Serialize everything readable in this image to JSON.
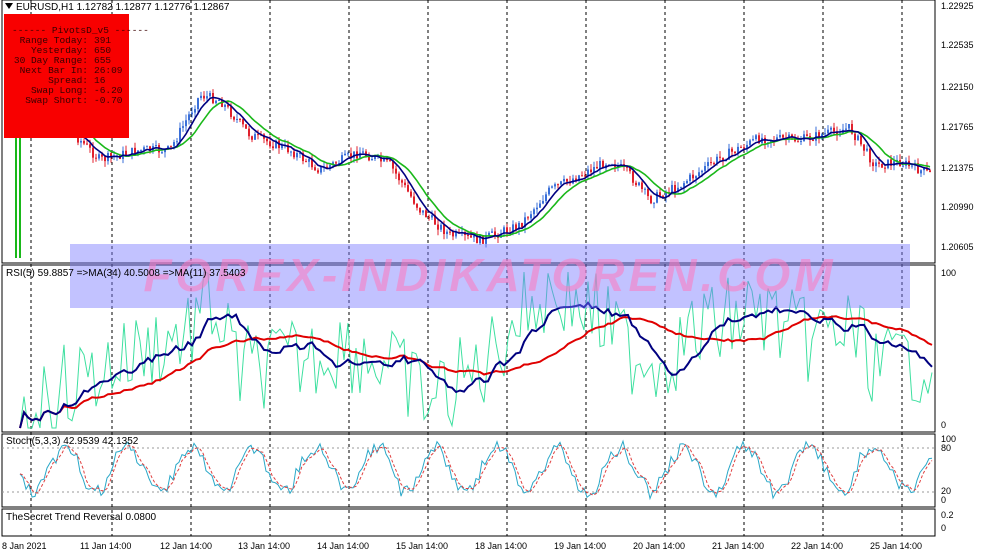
{
  "header": {
    "symbol_line": "EURUSD,H1  1.12782 1.12877 1.12776 1.12867"
  },
  "pivots_panel": {
    "title": "------  PivotsD_v5  ------",
    "rows": [
      {
        "label": "Range  Today:",
        "value": "391"
      },
      {
        "label": "Yesterday:",
        "value": "650"
      },
      {
        "label": "30 Day Range:",
        "value": "655"
      },
      {
        "label": "Next Bar In:",
        "value": "26:09"
      },
      {
        "label": "Spread:",
        "value": "16"
      },
      {
        "label": "Swap  Long:",
        "value": "-6.20"
      },
      {
        "label": "Swap  Short:",
        "value": "-0.70"
      }
    ],
    "background_color": "#f80000"
  },
  "watermark": {
    "text": "FOREX-INDIKATOREN.COM"
  },
  "price_axis": {
    "ticks": [
      "1.22925",
      "1.22535",
      "1.22150",
      "1.21765",
      "1.21375",
      "1.20990",
      "1.20605"
    ]
  },
  "rsi_pane": {
    "label": "RSI(5) 59.8857  =>MA(34) 40.5008  =>MA(11) 37.5403",
    "ticks": [
      "100",
      "0"
    ]
  },
  "stoch_pane": {
    "label": "Stoch(5,3,3) 42.9539 42.1352",
    "ticks": [
      "100",
      "80",
      "20",
      "0"
    ]
  },
  "trend_pane": {
    "label": "TheSecret Trend Reversal 0.0800",
    "ticks": [
      "0.2",
      "0"
    ]
  },
  "time_axis": {
    "ticks": [
      "8 Jan 2021",
      "11 Jan 14:00",
      "12 Jan 14:00",
      "13 Jan 14:00",
      "14 Jan 14:00",
      "15 Jan 14:00",
      "18 Jan 14:00",
      "19 Jan 14:00",
      "20 Jan 14:00",
      "21 Jan 14:00",
      "22 Jan 14:00",
      "25 Jan 14:00"
    ]
  },
  "colors": {
    "bull": "#3a6fd8",
    "bear": "#e0202c",
    "ma_fast": "#000080",
    "ma_slow": "#1ab81a",
    "rsi": "#3ee0a0",
    "rsi_ma_fast": "#000080",
    "rsi_ma_slow": "#e00000",
    "stoch_main": "#2aa8c8",
    "stoch_signal": "#e04040"
  }
}
